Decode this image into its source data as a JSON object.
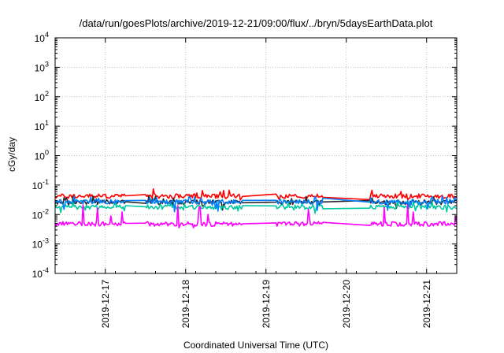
{
  "chart_data": {
    "type": "line",
    "title": "/data/run/goesPlots/archive/2019-12-21/09:00/flux/../bryn/5daysEarthData.plot",
    "xlabel": "Coordinated Universal Time (UTC)",
    "ylabel": "cGy/day",
    "yscale": "log",
    "ylim_exponent": [
      -4,
      4
    ],
    "y_ticks": [
      {
        "base": "10",
        "exp": "-4"
      },
      {
        "base": "10",
        "exp": "-3"
      },
      {
        "base": "10",
        "exp": "-2"
      },
      {
        "base": "10",
        "exp": "-1"
      },
      {
        "base": "10",
        "exp": "0"
      },
      {
        "base": "10",
        "exp": "1"
      },
      {
        "base": "10",
        "exp": "2"
      },
      {
        "base": "10",
        "exp": "3"
      },
      {
        "base": "10",
        "exp": "4"
      }
    ],
    "xlim": [
      "2019-12-16T09:00",
      "2019-12-21T09:00"
    ],
    "x_ticks": [
      "2019-12-17",
      "2019-12-18",
      "2019-12-19",
      "2019-12-20",
      "2019-12-21"
    ],
    "grid": true,
    "series": [
      {
        "color": "#ff0000",
        "level": 0.042,
        "spike_max": 0.075,
        "dip_min": 0.03
      },
      {
        "color": "#2a2a2a",
        "level": 0.026,
        "spike_max": 0.045,
        "dip_min": 0.014
      },
      {
        "color": "#00c8a0",
        "level": 0.018,
        "spike_max": 0.03,
        "dip_min": 0.01
      },
      {
        "color": "#0080ff",
        "level": 0.027,
        "spike_max": 0.045,
        "dip_min": 0.012
      },
      {
        "color": "#ff00ff",
        "level": 0.0048,
        "spike_max": 0.022,
        "dip_min": 0.0035
      }
    ],
    "data_gaps": [
      [
        "2019-12-17T06:00",
        "2019-12-17T12:00"
      ],
      [
        "2019-12-18T17:00",
        "2019-12-19T03:00"
      ],
      [
        "2019-12-19T17:00",
        "2019-12-20T07:00"
      ]
    ]
  }
}
